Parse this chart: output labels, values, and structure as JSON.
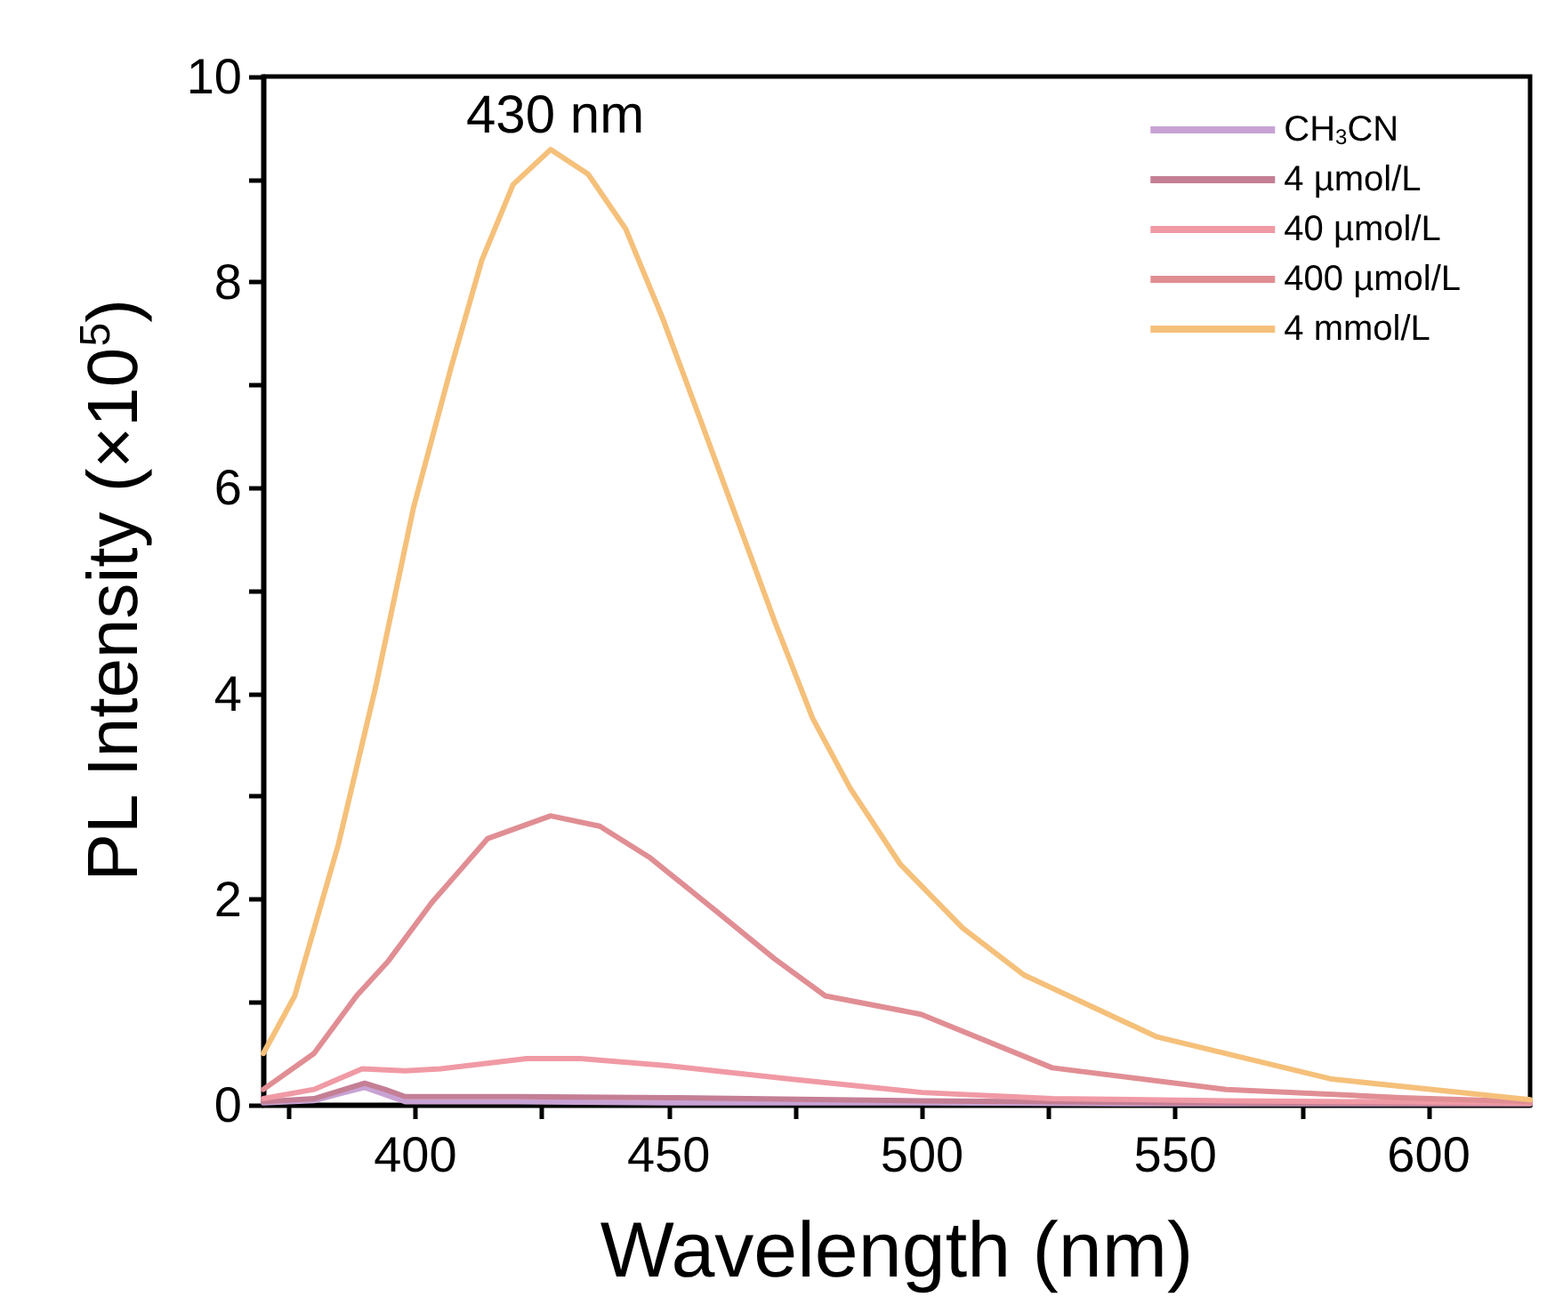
{
  "chart_data": {
    "type": "line",
    "xlabel": "Wavelength (nm)",
    "ylabel": "PL Intensity (×10$^{5}$)",
    "xlim": [
      370,
      620
    ],
    "ylim": [
      0,
      10
    ],
    "xticks": [
      {
        "value": 375,
        "label": null
      },
      400,
      {
        "value": 425,
        "label": null
      },
      450,
      {
        "value": 475,
        "label": null
      },
      500,
      {
        "value": 525,
        "label": null
      },
      550,
      {
        "value": 575,
        "label": null
      },
      600
    ],
    "yticks": [
      0,
      {
        "value": 1,
        "label": null
      },
      2,
      {
        "value": 3,
        "label": null
      },
      4,
      {
        "value": 5,
        "label": null
      },
      6,
      {
        "value": 7,
        "label": null
      },
      8,
      {
        "value": 9,
        "label": null
      },
      10
    ],
    "grid": false,
    "legend": "top right",
    "marker": "none",
    "line_style": "solid",
    "annotations": [
      "430 nm"
    ],
    "series": [
      {
        "name": "CH$_{3}$CN",
        "color": "#c8a2d4",
        "x": [
          370,
          380,
          386,
          390,
          394,
          398,
          420,
          450,
          500,
          550,
          620
        ],
        "values": [
          0.02,
          0.04,
          0.12,
          0.17,
          0.1,
          0.03,
          0.03,
          0.02,
          0.02,
          0.01,
          0.01
        ]
      },
      {
        "name": "4 µmol/L",
        "color": "#c47f95",
        "x": [
          370,
          380,
          386,
          390,
          394,
          398,
          420,
          450,
          500,
          550,
          620
        ],
        "values": [
          0.03,
          0.06,
          0.15,
          0.21,
          0.15,
          0.08,
          0.08,
          0.07,
          0.04,
          0.02,
          0.01
        ]
      },
      {
        "name": "40 µmol/L",
        "color": "#f09aa5",
        "x": [
          370,
          380,
          389.5,
          398,
          405,
          422,
          432.6,
          449.8,
          474,
          500,
          525.7,
          560,
          620
        ],
        "values": [
          0.06,
          0.15,
          0.35,
          0.33,
          0.35,
          0.45,
          0.45,
          0.38,
          0.25,
          0.12,
          0.06,
          0.04,
          0.02
        ]
      },
      {
        "name": "400 µmol/L",
        "color": "#e08e94",
        "x": [
          370,
          380,
          388.4,
          394.7,
          403.3,
          414.3,
          426.7,
          436.4,
          446.4,
          458.7,
          470.9,
          480.9,
          499.8,
          525.7,
          560,
          594.6,
          620
        ],
        "values": [
          0.15,
          0.5,
          1.06,
          1.4,
          1.97,
          2.59,
          2.81,
          2.71,
          2.4,
          1.91,
          1.42,
          1.06,
          0.88,
          0.36,
          0.15,
          0.07,
          0.03
        ]
      },
      {
        "name": "4 mmol/L",
        "color": "#f5c07a",
        "x": [
          370,
          376.2,
          384.8,
          392.2,
          399.6,
          407,
          413.1,
          419.3,
          426.7,
          434.1,
          441.5,
          448.8,
          456.2,
          463.6,
          471,
          478.4,
          485.8,
          495.7,
          508,
          520.2,
          546.4,
          580.9,
          620
        ],
        "values": [
          0.5,
          1.06,
          2.53,
          4.07,
          5.8,
          7.16,
          8.21,
          8.95,
          9.29,
          9.05,
          8.52,
          7.65,
          6.67,
          5.68,
          4.69,
          3.76,
          3.08,
          2.34,
          1.72,
          1.26,
          0.66,
          0.25,
          0.05
        ]
      }
    ]
  }
}
